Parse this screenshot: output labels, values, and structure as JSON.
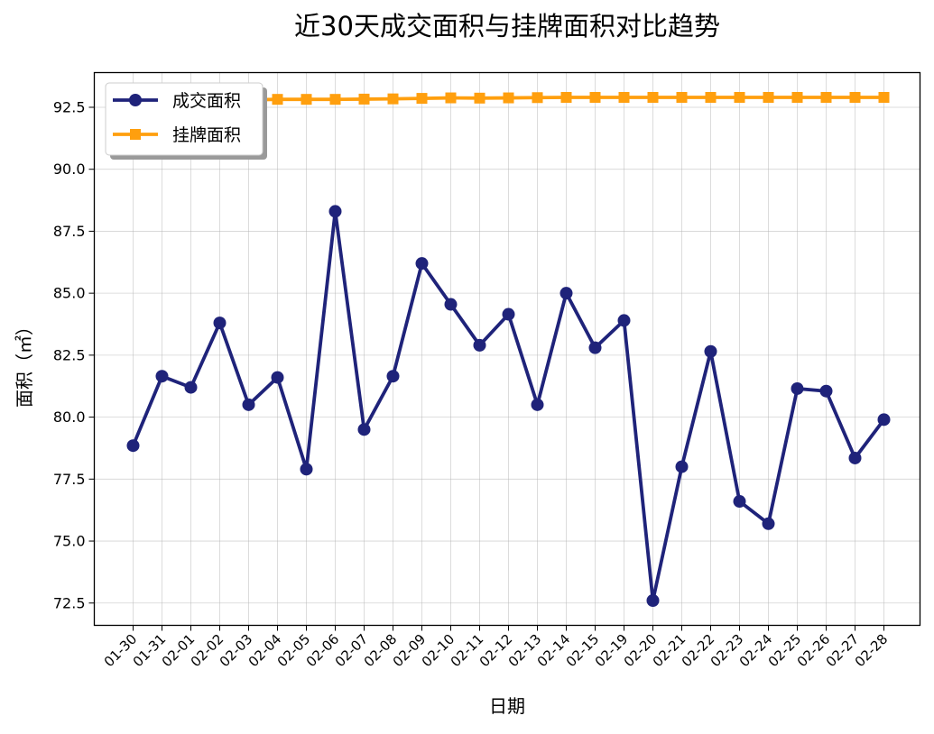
{
  "chart_data": {
    "type": "line",
    "title": "近30天成交面积与挂牌面积对比趋势",
    "xlabel": "日期",
    "ylabel": "面积（㎡）",
    "categories": [
      "01-30",
      "01-31",
      "02-01",
      "02-02",
      "02-03",
      "02-04",
      "02-05",
      "02-06",
      "02-07",
      "02-08",
      "02-09",
      "02-10",
      "02-11",
      "02-12",
      "02-13",
      "02-14",
      "02-15",
      "02-19",
      "02-20",
      "02-21",
      "02-22",
      "02-23",
      "02-24",
      "02-25",
      "02-26",
      "02-27",
      "02-28"
    ],
    "ylim": [
      71.6,
      93.9
    ],
    "yticks": [
      72.5,
      75.0,
      77.5,
      80.0,
      82.5,
      85.0,
      87.5,
      90.0,
      92.5
    ],
    "grid": true,
    "legend_position": "top-left",
    "series": [
      {
        "name": "成交面积",
        "color": "#1f237a",
        "marker": "circle",
        "values": [
          78.85,
          81.65,
          81.2,
          83.8,
          80.5,
          81.6,
          77.9,
          88.3,
          79.5,
          81.65,
          86.2,
          84.55,
          82.9,
          84.15,
          80.5,
          85.0,
          82.8,
          83.9,
          72.6,
          78.0,
          82.65,
          76.6,
          75.7,
          81.15,
          81.05,
          78.35,
          79.9
        ]
      },
      {
        "name": "挂牌面积",
        "color": "#ff9f0e",
        "marker": "square",
        "values": [
          92.75,
          92.77,
          92.78,
          92.8,
          92.8,
          92.82,
          92.82,
          92.82,
          92.83,
          92.84,
          92.86,
          92.88,
          92.87,
          92.88,
          92.89,
          92.9,
          92.9,
          92.9,
          92.9,
          92.9,
          92.9,
          92.9,
          92.9,
          92.9,
          92.9,
          92.9,
          92.9
        ]
      }
    ]
  }
}
